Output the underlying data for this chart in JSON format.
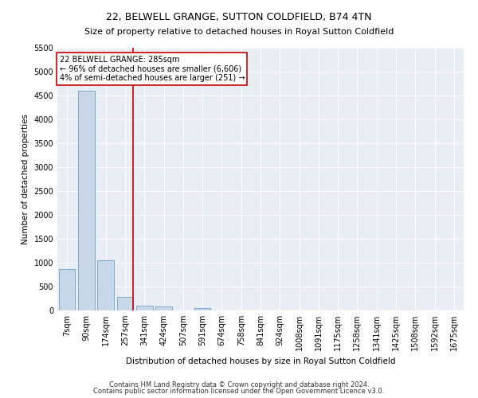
{
  "title": "22, BELWELL GRANGE, SUTTON COLDFIELD, B74 4TN",
  "subtitle": "Size of property relative to detached houses in Royal Sutton Coldfield",
  "xlabel": "Distribution of detached houses by size in Royal Sutton Coldfield",
  "ylabel": "Number of detached properties",
  "footnote1": "Contains HM Land Registry data © Crown copyright and database right 2024.",
  "footnote2": "Contains public sector information licensed under the Open Government Licence v3.0.",
  "categories": [
    "7sqm",
    "90sqm",
    "174sqm",
    "257sqm",
    "341sqm",
    "424sqm",
    "507sqm",
    "591sqm",
    "674sqm",
    "758sqm",
    "841sqm",
    "924sqm",
    "1008sqm",
    "1091sqm",
    "1175sqm",
    "1258sqm",
    "1341sqm",
    "1425sqm",
    "1508sqm",
    "1592sqm",
    "1675sqm"
  ],
  "values": [
    870,
    4600,
    1050,
    290,
    95,
    80,
    0,
    55,
    0,
    0,
    0,
    0,
    0,
    0,
    0,
    0,
    0,
    0,
    0,
    0,
    0
  ],
  "bar_color": "#c8d8e8",
  "bar_edge_color": "#7aaac8",
  "vline_color": "#cc0000",
  "vline_pos": 3.42,
  "ylim_max": 5500,
  "yticks": [
    0,
    500,
    1000,
    1500,
    2000,
    2500,
    3000,
    3500,
    4000,
    4500,
    5000,
    5500
  ],
  "annotation_line1": "22 BELWELL GRANGE: 285sqm",
  "annotation_line2": "← 96% of detached houses are smaller (6,606)",
  "annotation_line3": "4% of semi-detached houses are larger (251) →",
  "annotation_box_color": "white",
  "annotation_box_edge_color": "#cc0000",
  "background_color": "#e8eef4",
  "title_fontsize": 9,
  "subtitle_fontsize": 8,
  "axis_label_fontsize": 7.5,
  "tick_fontsize": 7,
  "annotation_fontsize": 7,
  "footnote_fontsize": 6
}
